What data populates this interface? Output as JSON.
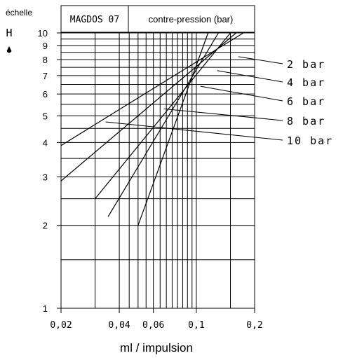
{
  "chart_data": {
    "type": "line",
    "header": {
      "scale_label": "échelle",
      "scale_symbol": "H",
      "model": "MAGDOS 07",
      "legend_title": "contre-pression (bar)"
    },
    "xlabel": "ml / impulsion",
    "x_scale": "log",
    "y_scale": "log",
    "xlim": [
      0.02,
      0.2
    ],
    "ylim": [
      1,
      10
    ],
    "x_tick_labels": [
      {
        "value": 0.02,
        "label": "0,02"
      },
      {
        "value": 0.04,
        "label": "0,04"
      },
      {
        "value": 0.06,
        "label": "0,06"
      },
      {
        "value": 0.1,
        "label": "0,1"
      },
      {
        "value": 0.2,
        "label": "0,2"
      }
    ],
    "y_tick_labels": [
      {
        "value": 1,
        "label": "1"
      },
      {
        "value": 2,
        "label": "2"
      },
      {
        "value": 3,
        "label": "3"
      },
      {
        "value": 4,
        "label": "4"
      },
      {
        "value": 5,
        "label": "5"
      },
      {
        "value": 6,
        "label": "6"
      },
      {
        "value": 7,
        "label": "7"
      },
      {
        "value": 8,
        "label": "8"
      },
      {
        "value": 9,
        "label": "9"
      },
      {
        "value": 10,
        "label": "10"
      }
    ],
    "x_gridlines": [
      0.02,
      0.03,
      0.04,
      0.045,
      0.05,
      0.055,
      0.06,
      0.065,
      0.07,
      0.075,
      0.08,
      0.085,
      0.09,
      0.095,
      0.1,
      0.15,
      0.2
    ],
    "y_gridlines": [
      1.5,
      2,
      2.5,
      3,
      3.5,
      4,
      4.5,
      5,
      5.5,
      6,
      6.5,
      7,
      7.5,
      8,
      8.5,
      9,
      9.5,
      10
    ],
    "series": [
      {
        "name": "2 bar",
        "x": [
          0.02,
          0.2
        ],
        "y": [
          3.9,
          10.6
        ],
        "leader_anchor": [
          0.165,
          8.2
        ]
      },
      {
        "name": "4 bar",
        "x": [
          0.02,
          0.2
        ],
        "y": [
          2.9,
          11.4
        ],
        "leader_anchor": [
          0.128,
          7.3
        ]
      },
      {
        "name": "6 bar",
        "x": [
          0.03,
          0.15
        ],
        "y": [
          2.5,
          10.0
        ],
        "leader_anchor": [
          0.105,
          6.4
        ]
      },
      {
        "name": "8 bar",
        "x": [
          0.035,
          0.13
        ],
        "y": [
          2.15,
          10.0
        ],
        "leader_anchor": [
          0.068,
          5.3
        ]
      },
      {
        "name": "10 bar",
        "x": [
          0.05,
          0.115
        ],
        "y": [
          2.0,
          10.0
        ],
        "leader_anchor": [
          0.034,
          4.75
        ]
      }
    ]
  }
}
